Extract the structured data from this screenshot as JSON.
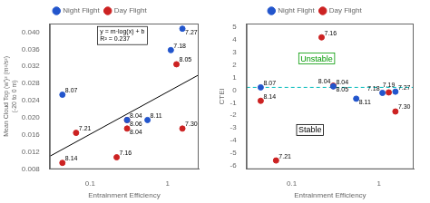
{
  "chart_data": [
    {
      "type": "scatter",
      "xlabel": "Entrainment Efficiency",
      "ylabel": [
        "Mean Cloud Top (w')² (m²/s²)",
        "(-20 to 0 m)"
      ],
      "log": "x",
      "xlim": [
        0.030199517,
        2.511886432
      ],
      "xticks": [
        0.1,
        1
      ],
      "ylim": [
        0.008,
        0.042
      ],
      "yticks": [
        0.008,
        0.012,
        0.016,
        {
          "value": 0.02,
          "label": "0.020"
        },
        0.024,
        0.028,
        0.032,
        0.036,
        {
          "value": 0.04,
          "label": "0.040"
        }
      ],
      "grid": false,
      "legend": "top",
      "series": [
        {
          "name": "Night Flight",
          "color": "#2255cc",
          "marker": "circle",
          "x": [
            0.044,
            0.3,
            1.55,
            1.1,
            0.55
          ],
          "values": [
            0.0254,
            0.0195,
            0.0408,
            0.0358,
            0.0195
          ],
          "labels": [
            "8.07",
            "8.04",
            "7.27",
            "7.18",
            "8.11"
          ]
        },
        {
          "name": "Day Flight",
          "color": "#cc2222",
          "marker": "circle",
          "x": [
            0.044,
            0.22,
            0.3,
            1.3,
            1.55,
            0.066,
            0.3
          ],
          "values": [
            0.0095,
            0.0108,
            0.0195,
            0.0325,
            0.0175,
            0.0165,
            0.0175
          ],
          "labels": [
            "8.14",
            "7.16",
            "8.06",
            "8.05",
            "7.30",
            "7.21",
            "8.04"
          ]
        },
        {
          "type": "line",
          "color": "#000000",
          "line_style": "solid",
          "x": [
            0.030199517,
            2.511886432
          ],
          "values": [
            0.0110285,
            0.0300204
          ]
        }
      ],
      "annotations": [
        {
          "text": "y = m·log(x) + b"
        },
        {
          "text": "R² = 0.237"
        }
      ]
    },
    {
      "type": "scatter",
      "xlabel": "Entrainment Efficiency",
      "ylabel": "CTEI",
      "log": "x",
      "xlim": [
        0.030199517,
        2.511886432
      ],
      "xticks": [
        0.1,
        1
      ],
      "ylim": [
        -6.3,
        5.3
      ],
      "yticks": [
        -6,
        -5,
        -4,
        -3,
        -2,
        -1,
        0,
        1,
        2,
        3,
        4,
        5
      ],
      "grid": false,
      "legend": "top",
      "series": [
        {
          "name": "Night Flight",
          "color": "#2255cc",
          "marker": "circle",
          "x": [
            0.044,
            0.3,
            1.55,
            1.1,
            0.55
          ],
          "values": [
            0.22,
            0.3,
            -0.12,
            -0.22,
            -0.68
          ],
          "labels": [
            "8.07",
            "8.04",
            "7.27",
            "7.18",
            "8.11"
          ]
        },
        {
          "name": "Day Flight",
          "color": "#cc2222",
          "marker": "circle",
          "x": [
            0.22,
            0.066,
            0.3,
            1.3,
            1.55,
            0.044,
            0.3
          ],
          "values": [
            4.2,
            -5.6,
            0.35,
            -0.18,
            -1.7,
            -0.85,
            0.32
          ],
          "labels": [
            "7.16",
            "7.21",
            "8.05",
            "7.19",
            "7.30",
            "8.14",
            "8.04"
          ]
        }
      ],
      "annotations": [
        {
          "text": "Unstable",
          "color": "#009900"
        },
        {
          "text": "Stable",
          "color": "#000000"
        },
        {
          "type": "hline",
          "y": 0.22,
          "color": "#00bbbb",
          "line_style": "dashed"
        }
      ]
    }
  ]
}
